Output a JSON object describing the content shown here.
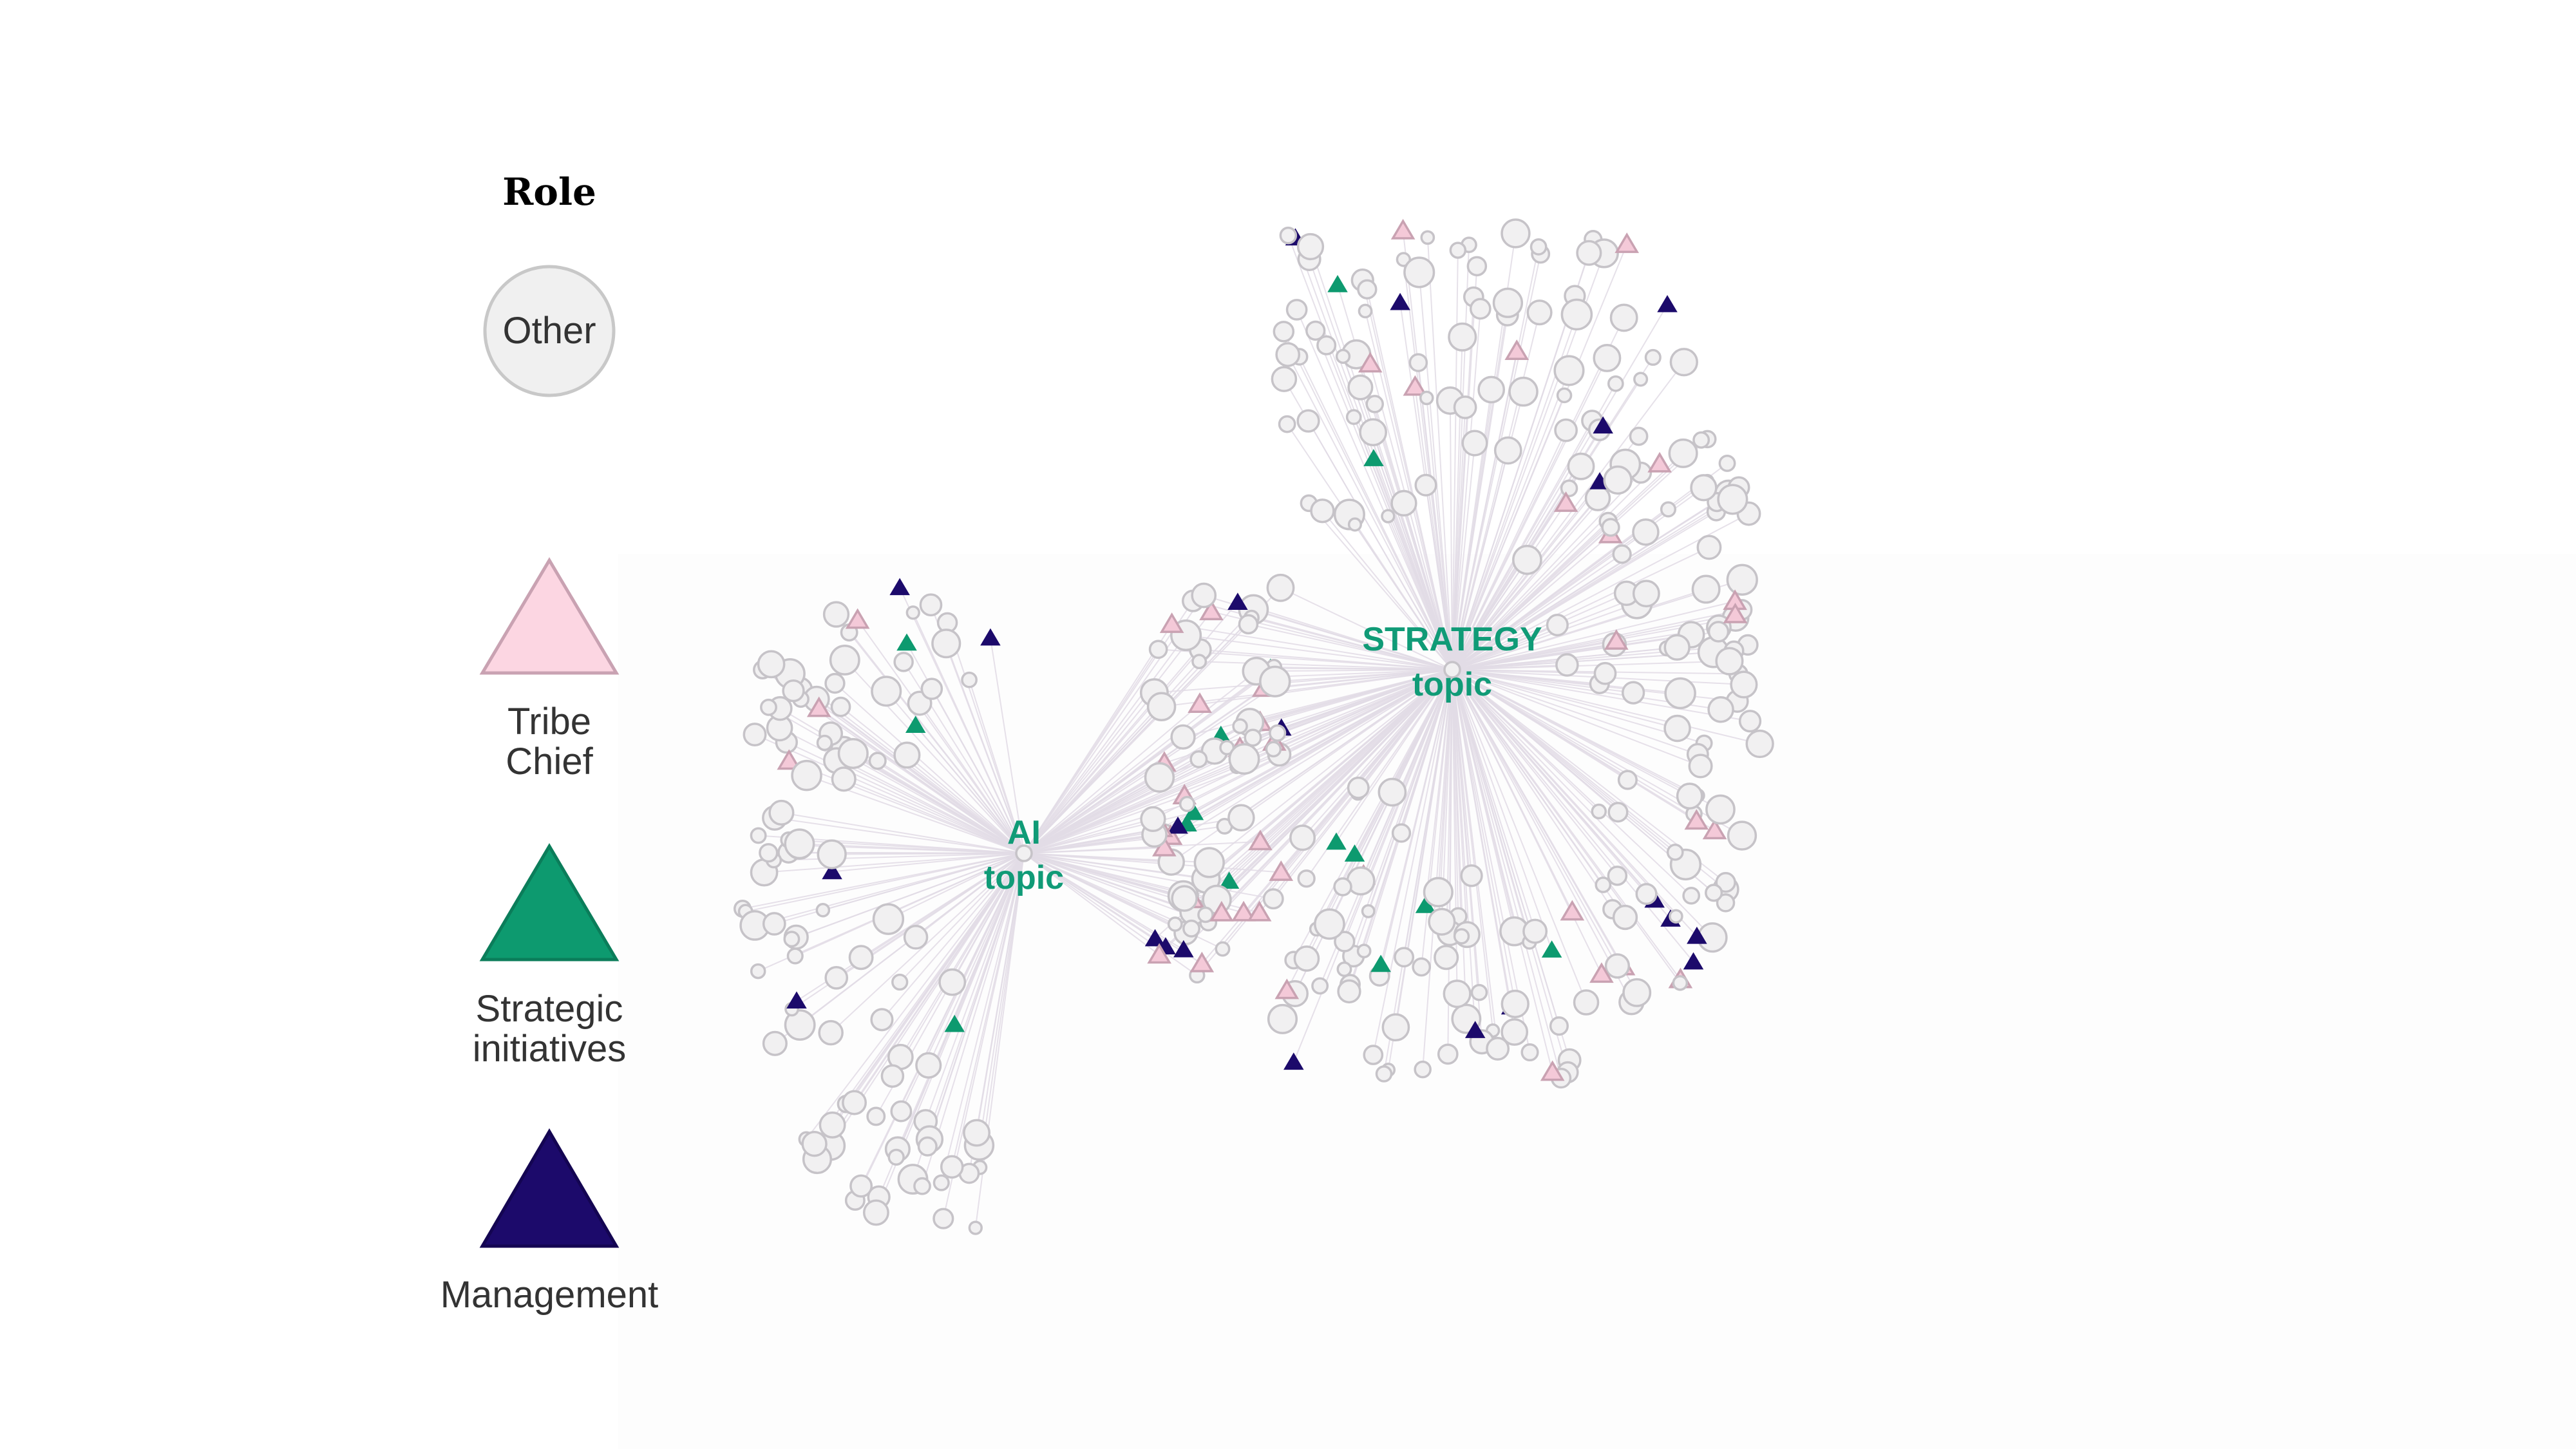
{
  "legend": {
    "title": "Role",
    "items": [
      {
        "shape": "circle",
        "label": "Other",
        "fill": "#f0f0f0",
        "stroke": "#c8c8c8"
      },
      {
        "shape": "triangle",
        "label": "Tribe Chief",
        "label_lines": [
          "Tribe",
          "Chief"
        ],
        "fill": "#fcd6e2",
        "stroke": "#c9a2b2"
      },
      {
        "shape": "triangle",
        "label": "Strategic initiatives",
        "label_lines": [
          "Strategic",
          "initiatives"
        ],
        "fill": "#0d9a6f",
        "stroke": "#0b7d5a"
      },
      {
        "shape": "triangle",
        "label": "Management",
        "label_lines": [
          "Management"
        ],
        "fill": "#1c0a6b",
        "stroke": "#140552"
      }
    ]
  },
  "hubs": [
    {
      "id": "ai",
      "label_lines": [
        "AI",
        "topic"
      ]
    },
    {
      "id": "strategy",
      "label_lines": [
        "STRATEGY",
        "topic"
      ]
    }
  ],
  "colors": {
    "hub_label": "#109b77",
    "edge": "#e2dce6",
    "other_fill": "#f1f0f1",
    "other_stroke": "#c6c3c8",
    "tribe_chief_fill": "#f4c9d8",
    "tribe_chief_stroke": "#c9a2b2",
    "strategic_fill": "#0d9a6f",
    "management_fill": "#1c0a6b"
  },
  "node_counts": {
    "ai_only": 108,
    "shared": 82,
    "strategy_only": 250
  }
}
